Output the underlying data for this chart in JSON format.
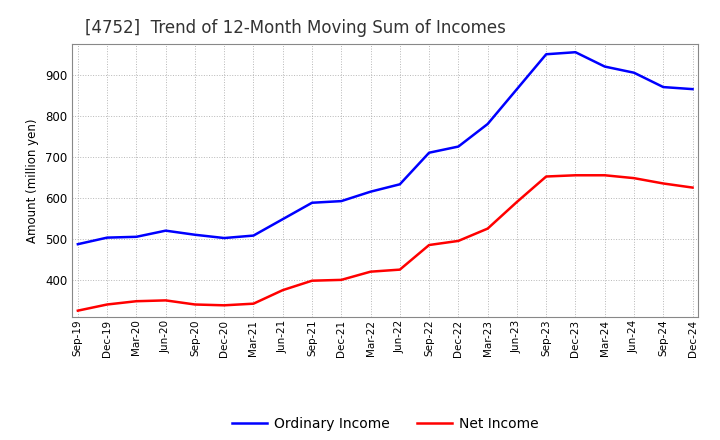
{
  "title": "[4752]  Trend of 12-Month Moving Sum of Incomes",
  "ylabel": "Amount (million yen)",
  "background_color": "#ffffff",
  "grid_color": "#999999",
  "title_fontsize": 12,
  "tick_labels": [
    "Sep-19",
    "Dec-19",
    "Mar-20",
    "Jun-20",
    "Sep-20",
    "Dec-20",
    "Mar-21",
    "Jun-21",
    "Sep-21",
    "Dec-21",
    "Mar-22",
    "Jun-22",
    "Sep-22",
    "Dec-22",
    "Mar-23",
    "Jun-23",
    "Sep-23",
    "Dec-23",
    "Mar-24",
    "Jun-24",
    "Sep-24",
    "Dec-24"
  ],
  "ordinary_income": [
    487,
    503,
    505,
    520,
    510,
    502,
    508,
    548,
    588,
    592,
    615,
    633,
    710,
    725,
    780,
    865,
    950,
    955,
    920,
    905,
    870,
    865
  ],
  "net_income": [
    325,
    340,
    348,
    350,
    340,
    338,
    342,
    375,
    398,
    400,
    420,
    425,
    485,
    495,
    525,
    590,
    652,
    655,
    655,
    648,
    635,
    625
  ],
  "ordinary_color": "#0000ff",
  "net_color": "#ff0000",
  "ylim_min": 310,
  "ylim_max": 975,
  "yticks": [
    400,
    500,
    600,
    700,
    800,
    900
  ],
  "line_width": 1.8,
  "legend_fontsize": 10
}
